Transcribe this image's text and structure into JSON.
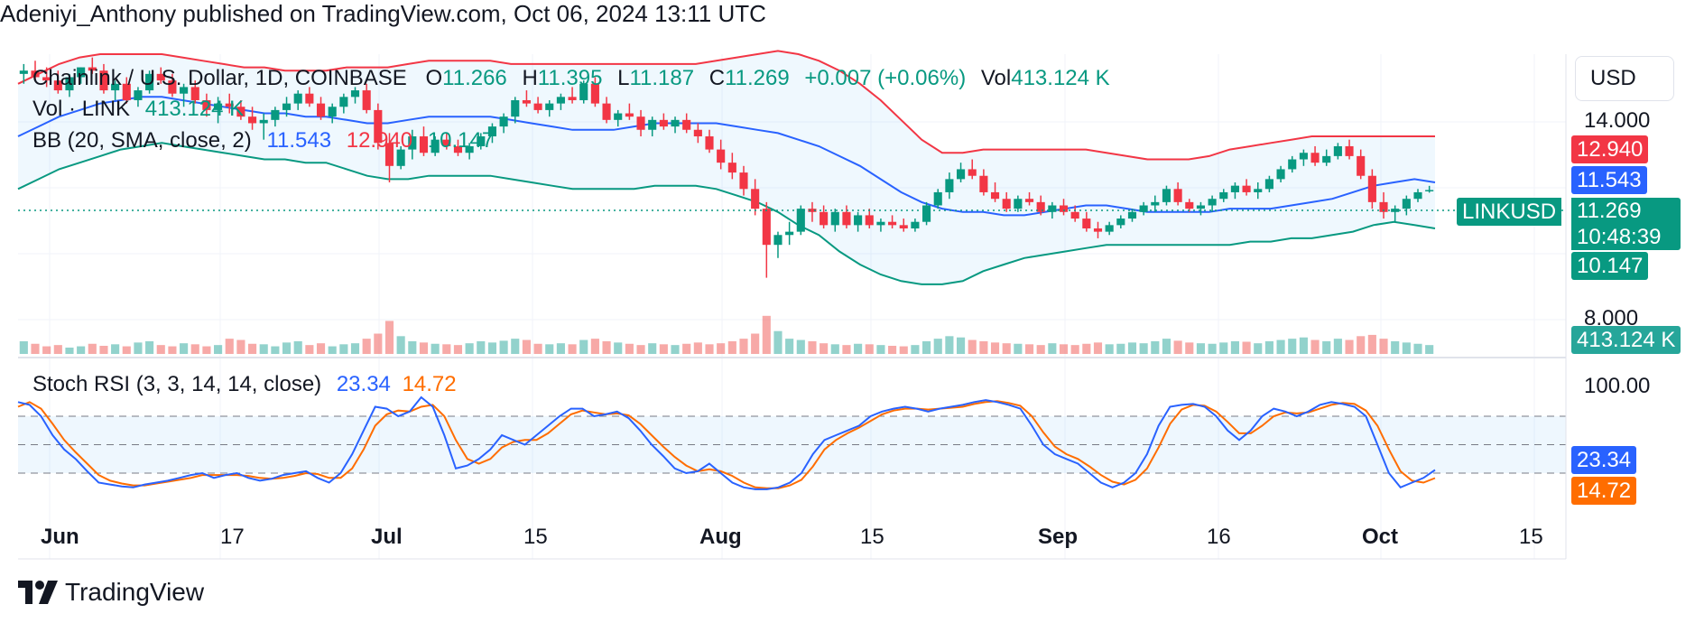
{
  "header": {
    "published": "Adeniyi_Anthony published on TradingView.com, Oct 06, 2024 13:11 UTC"
  },
  "legend": {
    "symbol": "Chainlink / U.S. Dollar, 1D, COINBASE",
    "o_label": "O",
    "o_val": "11.266",
    "h_label": "H",
    "h_val": "11.395",
    "l_label": "L",
    "l_val": "11.187",
    "c_label": "C",
    "c_val": "11.269",
    "change": "+0.007 (+0.06%)",
    "vol_label": "Vol",
    "vol_val": "413.124 K",
    "vol_line_label": "Vol · LINK",
    "vol_line_val": "413.124 K",
    "bb_label": "BB (20, SMA, close, 2)",
    "bb_mid": "11.543",
    "bb_upper": "12.940",
    "bb_lower": "10.147",
    "stoch_label": "Stoch RSI (3, 3, 14, 14, close)",
    "stoch_k": "23.34",
    "stoch_d": "14.72"
  },
  "price_axis": {
    "currency": "USD",
    "ticks": [
      "14.000",
      "8.000"
    ],
    "stoch_tick": "100.00"
  },
  "price_tags": {
    "upper": "12.940",
    "mid": "11.543",
    "symbol": "LINKUSD",
    "price": "11.269",
    "countdown": "10:48:39",
    "lower": "10.147",
    "volume": "413.124 K",
    "stoch_k": "23.34",
    "stoch_d": "14.72"
  },
  "time_axis": [
    "Jun",
    "17",
    "Jul",
    "15",
    "Aug",
    "15",
    "Sep",
    "16",
    "Oct",
    "15"
  ],
  "footer": {
    "brand": "TradingView"
  },
  "colors": {
    "up": "#089981",
    "down": "#f23645",
    "bb_mid": "#2962ff",
    "bb_upper": "#f23645",
    "bb_lower": "#089981",
    "bb_fill": "#2196f3",
    "stoch_k": "#2962ff",
    "stoch_d": "#ff6d00",
    "vol_up": "#26a69a",
    "vol_down": "#ef5350"
  },
  "chart_data": {
    "type": "candlestick",
    "symbol": "LINKUSD",
    "interval": "1D",
    "price_range": [
      6.2,
      15.4
    ],
    "price_ticks": [
      14.0,
      8.0
    ],
    "candles": [
      [
        14.8,
        15.1,
        14.5,
        14.9
      ],
      [
        14.9,
        15.2,
        14.6,
        14.7
      ],
      [
        14.7,
        15.0,
        14.4,
        14.6
      ],
      [
        14.6,
        14.9,
        14.2,
        14.3
      ],
      [
        14.3,
        14.8,
        14.1,
        14.7
      ],
      [
        14.7,
        15.0,
        14.5,
        15.0
      ],
      [
        15.0,
        15.3,
        14.8,
        14.9
      ],
      [
        14.9,
        15.1,
        14.2,
        14.3
      ],
      [
        14.3,
        14.6,
        14.0,
        14.5
      ],
      [
        14.5,
        14.7,
        13.9,
        14.0
      ],
      [
        14.0,
        14.4,
        13.8,
        14.3
      ],
      [
        14.3,
        14.9,
        14.2,
        14.8
      ],
      [
        14.8,
        15.0,
        14.5,
        14.6
      ],
      [
        14.6,
        14.8,
        14.1,
        14.2
      ],
      [
        14.2,
        14.5,
        13.8,
        14.4
      ],
      [
        14.4,
        14.6,
        13.9,
        14.0
      ],
      [
        14.0,
        14.2,
        13.5,
        13.7
      ],
      [
        13.7,
        14.1,
        13.3,
        13.9
      ],
      [
        13.9,
        14.2,
        13.6,
        13.8
      ],
      [
        13.8,
        14.0,
        13.4,
        13.5
      ],
      [
        13.5,
        13.8,
        13.1,
        13.3
      ],
      [
        13.3,
        13.6,
        12.8,
        13.4
      ],
      [
        13.4,
        13.8,
        13.2,
        13.7
      ],
      [
        13.7,
        14.1,
        13.5,
        13.9
      ],
      [
        13.9,
        14.3,
        13.7,
        14.2
      ],
      [
        14.2,
        14.4,
        13.8,
        13.9
      ],
      [
        13.9,
        14.1,
        13.4,
        13.5
      ],
      [
        13.5,
        13.9,
        13.3,
        13.8
      ],
      [
        13.8,
        14.2,
        13.6,
        14.1
      ],
      [
        14.1,
        14.4,
        13.9,
        14.3
      ],
      [
        14.3,
        14.5,
        13.6,
        13.7
      ],
      [
        13.7,
        13.9,
        12.5,
        12.7
      ],
      [
        12.7,
        13.0,
        11.5,
        12.0
      ],
      [
        12.0,
        12.6,
        11.9,
        12.5
      ],
      [
        12.5,
        13.1,
        12.2,
        12.9
      ],
      [
        12.9,
        13.2,
        12.3,
        12.4
      ],
      [
        12.4,
        12.9,
        12.3,
        12.8
      ],
      [
        12.8,
        13.0,
        12.5,
        12.6
      ],
      [
        12.6,
        12.8,
        12.3,
        12.4
      ],
      [
        12.4,
        12.7,
        12.2,
        12.6
      ],
      [
        12.6,
        13.0,
        12.5,
        12.9
      ],
      [
        12.9,
        13.3,
        12.7,
        13.2
      ],
      [
        13.2,
        13.6,
        13.0,
        13.5
      ],
      [
        13.5,
        14.1,
        13.3,
        14.0
      ],
      [
        14.0,
        14.3,
        13.8,
        13.9
      ],
      [
        13.9,
        14.1,
        13.6,
        13.7
      ],
      [
        13.7,
        14.0,
        13.5,
        13.9
      ],
      [
        13.9,
        14.2,
        13.7,
        14.1
      ],
      [
        14.1,
        14.4,
        13.9,
        14.0
      ],
      [
        14.0,
        14.6,
        13.9,
        14.5
      ],
      [
        14.5,
        14.7,
        13.8,
        13.9
      ],
      [
        13.9,
        14.1,
        13.3,
        13.4
      ],
      [
        13.4,
        13.7,
        13.2,
        13.6
      ],
      [
        13.6,
        13.9,
        13.4,
        13.5
      ],
      [
        13.5,
        13.7,
        12.9,
        13.1
      ],
      [
        13.1,
        13.5,
        12.9,
        13.4
      ],
      [
        13.4,
        13.6,
        13.1,
        13.2
      ],
      [
        13.2,
        13.5,
        13.0,
        13.4
      ],
      [
        13.4,
        13.6,
        13.0,
        13.1
      ],
      [
        13.1,
        13.3,
        12.7,
        12.9
      ],
      [
        12.9,
        13.1,
        12.4,
        12.5
      ],
      [
        12.5,
        12.8,
        11.9,
        12.1
      ],
      [
        12.1,
        12.4,
        11.6,
        11.8
      ],
      [
        11.8,
        12.0,
        11.1,
        11.3
      ],
      [
        11.3,
        11.6,
        10.5,
        10.7
      ],
      [
        10.7,
        10.9,
        8.6,
        9.6
      ],
      [
        9.6,
        10.0,
        9.2,
        9.9
      ],
      [
        9.9,
        10.3,
        9.6,
        10.0
      ],
      [
        10.0,
        10.8,
        9.9,
        10.7
      ],
      [
        10.7,
        10.9,
        10.3,
        10.6
      ],
      [
        10.6,
        10.8,
        10.1,
        10.2
      ],
      [
        10.2,
        10.7,
        10.0,
        10.6
      ],
      [
        10.6,
        10.8,
        10.1,
        10.2
      ],
      [
        10.2,
        10.6,
        10.0,
        10.5
      ],
      [
        10.5,
        10.7,
        10.1,
        10.2
      ],
      [
        10.2,
        10.4,
        10.0,
        10.3
      ],
      [
        10.3,
        10.5,
        10.1,
        10.2
      ],
      [
        10.2,
        10.4,
        10.0,
        10.1
      ],
      [
        10.1,
        10.4,
        10.0,
        10.3
      ],
      [
        10.3,
        10.9,
        10.2,
        10.8
      ],
      [
        10.8,
        11.3,
        10.7,
        11.2
      ],
      [
        11.2,
        11.8,
        11.0,
        11.6
      ],
      [
        11.6,
        12.1,
        11.5,
        11.9
      ],
      [
        11.9,
        12.2,
        11.6,
        11.7
      ],
      [
        11.7,
        11.9,
        11.1,
        11.2
      ],
      [
        11.2,
        11.5,
        10.9,
        11.0
      ],
      [
        11.0,
        11.2,
        10.6,
        10.7
      ],
      [
        10.7,
        11.1,
        10.6,
        11.0
      ],
      [
        11.0,
        11.2,
        10.8,
        10.9
      ],
      [
        10.9,
        11.1,
        10.5,
        10.6
      ],
      [
        10.6,
        10.9,
        10.4,
        10.8
      ],
      [
        10.8,
        11.0,
        10.5,
        10.6
      ],
      [
        10.6,
        10.8,
        10.3,
        10.4
      ],
      [
        10.4,
        10.6,
        10.0,
        10.1
      ],
      [
        10.1,
        10.3,
        9.8,
        10.0
      ],
      [
        10.0,
        10.3,
        9.9,
        10.2
      ],
      [
        10.2,
        10.5,
        10.1,
        10.4
      ],
      [
        10.4,
        10.7,
        10.3,
        10.6
      ],
      [
        10.6,
        10.9,
        10.5,
        10.8
      ],
      [
        10.8,
        11.1,
        10.6,
        10.9
      ],
      [
        10.9,
        11.4,
        10.8,
        11.3
      ],
      [
        11.3,
        11.5,
        10.8,
        10.9
      ],
      [
        10.9,
        11.0,
        10.6,
        10.7
      ],
      [
        10.7,
        10.9,
        10.5,
        10.8
      ],
      [
        10.8,
        11.1,
        10.6,
        11.0
      ],
      [
        11.0,
        11.3,
        10.9,
        11.2
      ],
      [
        11.2,
        11.5,
        11.0,
        11.4
      ],
      [
        11.4,
        11.6,
        11.1,
        11.2
      ],
      [
        11.2,
        11.5,
        11.0,
        11.3
      ],
      [
        11.3,
        11.7,
        11.2,
        11.6
      ],
      [
        11.6,
        12.0,
        11.5,
        11.9
      ],
      [
        11.9,
        12.3,
        11.8,
        12.2
      ],
      [
        12.2,
        12.5,
        12.0,
        12.4
      ],
      [
        12.4,
        12.6,
        12.0,
        12.1
      ],
      [
        12.1,
        12.5,
        12.0,
        12.3
      ],
      [
        12.3,
        12.7,
        12.2,
        12.6
      ],
      [
        12.6,
        12.8,
        12.2,
        12.3
      ],
      [
        12.3,
        12.5,
        11.6,
        11.7
      ],
      [
        11.7,
        11.9,
        10.7,
        10.9
      ],
      [
        10.9,
        11.2,
        10.4,
        10.6
      ],
      [
        10.6,
        10.8,
        10.3,
        10.7
      ],
      [
        10.7,
        11.1,
        10.5,
        11.0
      ],
      [
        11.0,
        11.3,
        10.9,
        11.2
      ],
      [
        11.266,
        11.395,
        11.187,
        11.269
      ]
    ],
    "volume_range": [
      0,
      1600
    ],
    "volume": [
      500,
      400,
      300,
      350,
      250,
      300,
      400,
      320,
      380,
      300,
      450,
      500,
      350,
      300,
      420,
      380,
      300,
      350,
      600,
      550,
      400,
      380,
      300,
      450,
      500,
      350,
      420,
      300,
      380,
      420,
      600,
      800,
      1300,
      700,
      500,
      450,
      400,
      380,
      350,
      420,
      500,
      450,
      520,
      600,
      550,
      400,
      380,
      420,
      380,
      550,
      600,
      500,
      450,
      400,
      350,
      420,
      380,
      350,
      400,
      450,
      380,
      420,
      500,
      600,
      800,
      1500,
      900,
      600,
      550,
      500,
      420,
      380,
      350,
      400,
      380,
      350,
      320,
      300,
      350,
      500,
      600,
      700,
      650,
      550,
      500,
      450,
      420,
      400,
      380,
      350,
      420,
      380,
      350,
      400,
      450,
      380,
      400,
      450,
      420,
      500,
      600,
      520,
      450,
      420,
      400,
      450,
      500,
      480,
      420,
      500,
      550,
      600,
      650,
      550,
      500,
      600,
      550,
      700,
      750,
      600,
      500,
      450,
      400,
      350
    ],
    "bollinger": {
      "params": "BB (20, SMA, close, 2)",
      "upper": [
        14.5,
        14.8,
        15.1,
        15.3,
        15.4,
        15.4,
        15.4,
        15.4,
        15.3,
        15.2,
        15.1,
        15.0,
        15.0,
        14.9,
        14.9,
        14.9,
        15.0,
        15.0,
        15.0,
        15.1,
        15.2,
        15.2,
        15.2,
        15.2,
        15.1,
        15.1,
        15.1,
        15.1,
        15.1,
        15.1,
        15.1,
        15.1,
        15.1,
        15.1,
        15.2,
        15.3,
        15.4,
        15.5,
        15.4,
        15.2,
        14.9,
        14.5,
        14.0,
        13.4,
        12.8,
        12.4,
        12.4,
        12.5,
        12.5,
        12.5,
        12.5,
        12.5,
        12.5,
        12.4,
        12.3,
        12.2,
        12.2,
        12.2,
        12.3,
        12.5,
        12.6,
        12.7,
        12.8,
        12.9,
        12.9,
        12.9,
        12.9,
        12.9,
        12.9,
        12.9
      ],
      "basis": [
        12.9,
        13.2,
        13.5,
        13.7,
        13.9,
        14.0,
        14.1,
        14.1,
        14.0,
        13.9,
        13.8,
        13.7,
        13.6,
        13.6,
        13.5,
        13.5,
        13.4,
        13.3,
        13.3,
        13.4,
        13.5,
        13.5,
        13.5,
        13.5,
        13.4,
        13.3,
        13.2,
        13.1,
        13.1,
        13.1,
        13.2,
        13.3,
        13.3,
        13.3,
        13.3,
        13.2,
        13.1,
        13.0,
        12.8,
        12.6,
        12.3,
        12.0,
        11.6,
        11.2,
        10.9,
        10.7,
        10.6,
        10.6,
        10.5,
        10.5,
        10.6,
        10.7,
        10.8,
        10.8,
        10.7,
        10.6,
        10.6,
        10.6,
        10.6,
        10.7,
        10.7,
        10.7,
        10.8,
        10.9,
        11.0,
        11.2,
        11.4,
        11.5,
        11.6,
        11.5
      ],
      "lower": [
        11.3,
        11.6,
        11.9,
        12.1,
        12.3,
        12.5,
        12.6,
        12.7,
        12.6,
        12.5,
        12.4,
        12.3,
        12.2,
        12.2,
        12.1,
        12.1,
        11.9,
        11.7,
        11.6,
        11.6,
        11.7,
        11.7,
        11.7,
        11.7,
        11.6,
        11.5,
        11.4,
        11.3,
        11.3,
        11.3,
        11.3,
        11.4,
        11.4,
        11.4,
        11.3,
        11.1,
        10.9,
        10.6,
        10.2,
        9.9,
        9.4,
        9.0,
        8.7,
        8.5,
        8.4,
        8.4,
        8.5,
        8.8,
        9.0,
        9.2,
        9.3,
        9.4,
        9.5,
        9.6,
        9.6,
        9.6,
        9.6,
        9.6,
        9.6,
        9.6,
        9.7,
        9.7,
        9.8,
        9.8,
        9.9,
        10.0,
        10.2,
        10.3,
        10.2,
        10.1
      ]
    },
    "stoch_rsi": {
      "params": "Stoch RSI (3, 3, 14, 14, close)",
      "range": [
        0,
        100
      ],
      "bands": [
        80,
        50,
        20
      ],
      "k": [
        95,
        92,
        80,
        60,
        45,
        35,
        22,
        10,
        8,
        6,
        5,
        8,
        10,
        12,
        15,
        18,
        20,
        15,
        18,
        20,
        15,
        12,
        14,
        18,
        20,
        22,
        15,
        10,
        20,
        40,
        65,
        90,
        88,
        80,
        85,
        100,
        90,
        60,
        25,
        28,
        35,
        45,
        60,
        55,
        50,
        60,
        70,
        80,
        88,
        88,
        80,
        82,
        85,
        78,
        65,
        50,
        38,
        25,
        20,
        22,
        30,
        20,
        10,
        5,
        3,
        3,
        5,
        10,
        20,
        40,
        55,
        60,
        65,
        70,
        80,
        85,
        88,
        90,
        88,
        85,
        88,
        90,
        92,
        95,
        97,
        95,
        92,
        88,
        70,
        50,
        40,
        35,
        30,
        20,
        10,
        5,
        10,
        20,
        40,
        70,
        90,
        92,
        93,
        90,
        80,
        65,
        55,
        65,
        80,
        88,
        85,
        80,
        85,
        92,
        95,
        93,
        90,
        80,
        50,
        20,
        5,
        10,
        15,
        23.34
      ],
      "d": [
        90,
        95,
        88,
        72,
        55,
        42,
        30,
        18,
        12,
        9,
        7,
        7,
        9,
        11,
        13,
        15,
        18,
        18,
        18,
        18,
        17,
        15,
        14,
        15,
        17,
        20,
        19,
        15,
        15,
        25,
        45,
        70,
        82,
        86,
        85,
        90,
        92,
        80,
        55,
        35,
        30,
        35,
        47,
        53,
        55,
        55,
        62,
        72,
        82,
        86,
        84,
        82,
        83,
        81,
        72,
        60,
        48,
        37,
        28,
        22,
        24,
        22,
        17,
        10,
        5,
        4,
        4,
        7,
        13,
        27,
        45,
        55,
        62,
        68,
        75,
        82,
        86,
        88,
        88,
        87,
        88,
        89,
        90,
        93,
        95,
        96,
        94,
        91,
        80,
        63,
        48,
        40,
        35,
        27,
        18,
        11,
        8,
        13,
        25,
        47,
        72,
        87,
        92,
        91,
        85,
        74,
        62,
        62,
        70,
        80,
        84,
        83,
        84,
        88,
        92,
        94,
        93,
        86,
        70,
        45,
        22,
        12,
        10,
        14.72
      ]
    },
    "time_ticks": [
      "Jun",
      "17",
      "Jul",
      "15",
      "Aug",
      "15",
      "Sep",
      "16",
      "Oct",
      "15"
    ]
  }
}
